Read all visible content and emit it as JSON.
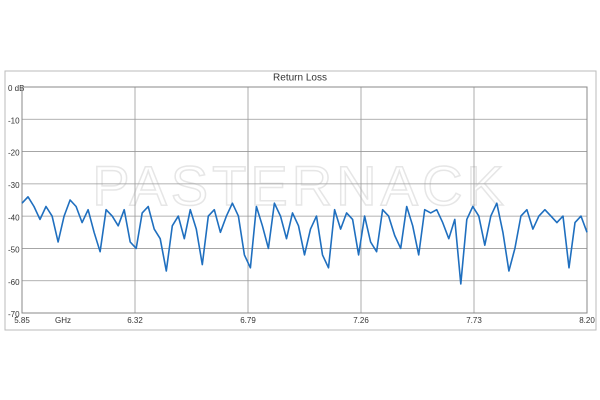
{
  "chart_data": {
    "type": "line",
    "title": "Return Loss",
    "watermark": "PASTERNACK",
    "x_label": "GHz",
    "x": [
      5.85,
      5.875,
      5.9,
      5.925,
      5.95,
      5.975,
      6,
      6.025,
      6.05,
      6.075,
      6.1,
      6.125,
      6.15,
      6.175,
      6.2,
      6.225,
      6.25,
      6.275,
      6.3,
      6.325,
      6.35,
      6.375,
      6.4,
      6.425,
      6.45,
      6.475,
      6.5,
      6.525,
      6.55,
      6.575,
      6.6,
      6.625,
      6.65,
      6.675,
      6.7,
      6.725,
      6.75,
      6.775,
      6.8,
      6.825,
      6.85,
      6.875,
      6.9,
      6.925,
      6.95,
      6.975,
      7,
      7.025,
      7.05,
      7.075,
      7.1,
      7.125,
      7.15,
      7.175,
      7.2,
      7.225,
      7.25,
      7.275,
      7.3,
      7.325,
      7.35,
      7.375,
      7.4,
      7.425,
      7.45,
      7.475,
      7.5,
      7.525,
      7.55,
      7.575,
      7.6,
      7.625,
      7.65,
      7.675,
      7.7,
      7.725,
      7.75,
      7.775,
      7.8,
      7.825,
      7.85,
      7.875,
      7.9,
      7.925,
      7.95,
      7.975,
      8,
      8.025,
      8.05,
      8.075,
      8.1,
      8.125,
      8.15,
      8.175,
      8.2
    ],
    "series": [
      {
        "color": "#1f6fbf",
        "values": [
          -36,
          -34,
          -37,
          -41,
          -37,
          -40,
          -48,
          -40,
          -35,
          -37,
          -42,
          -38,
          -45,
          -51,
          -38,
          -40,
          -43,
          -38,
          -48,
          -50,
          -39,
          -37,
          -44,
          -47,
          -57,
          -43,
          -40,
          -47,
          -38,
          -44,
          -55,
          -40,
          -38,
          -45,
          -40,
          -36,
          -40,
          -52,
          -56,
          -37,
          -43,
          -50,
          -36,
          -40,
          -47,
          -39,
          -43,
          -52,
          -44,
          -40,
          -52,
          -56,
          -38,
          -44,
          -39,
          -41,
          -52,
          -40,
          -48,
          -51,
          -38,
          -40,
          -46,
          -50,
          -37,
          -43,
          -52,
          -38,
          -39,
          -38,
          -42,
          -47,
          -41,
          -61,
          -41,
          -37,
          -40,
          -49,
          -40,
          -36,
          -45,
          -57,
          -50,
          -40,
          -38,
          -44,
          -40,
          -38,
          -40,
          -42,
          -40,
          -56,
          -42,
          -40,
          -45
        ]
      }
    ],
    "xlim": [
      5.85,
      8.2
    ],
    "xticks": [
      5.85,
      6.32,
      6.79,
      7.26,
      7.73,
      {
        "value": 8.2,
        "label": "8.20"
      }
    ],
    "ylim": [
      -70,
      0
    ],
    "yticks": [
      {
        "value": 0,
        "label": "0 dB"
      },
      -10,
      -20,
      -30,
      -40,
      -50,
      -60,
      -70
    ],
    "grid": true
  }
}
